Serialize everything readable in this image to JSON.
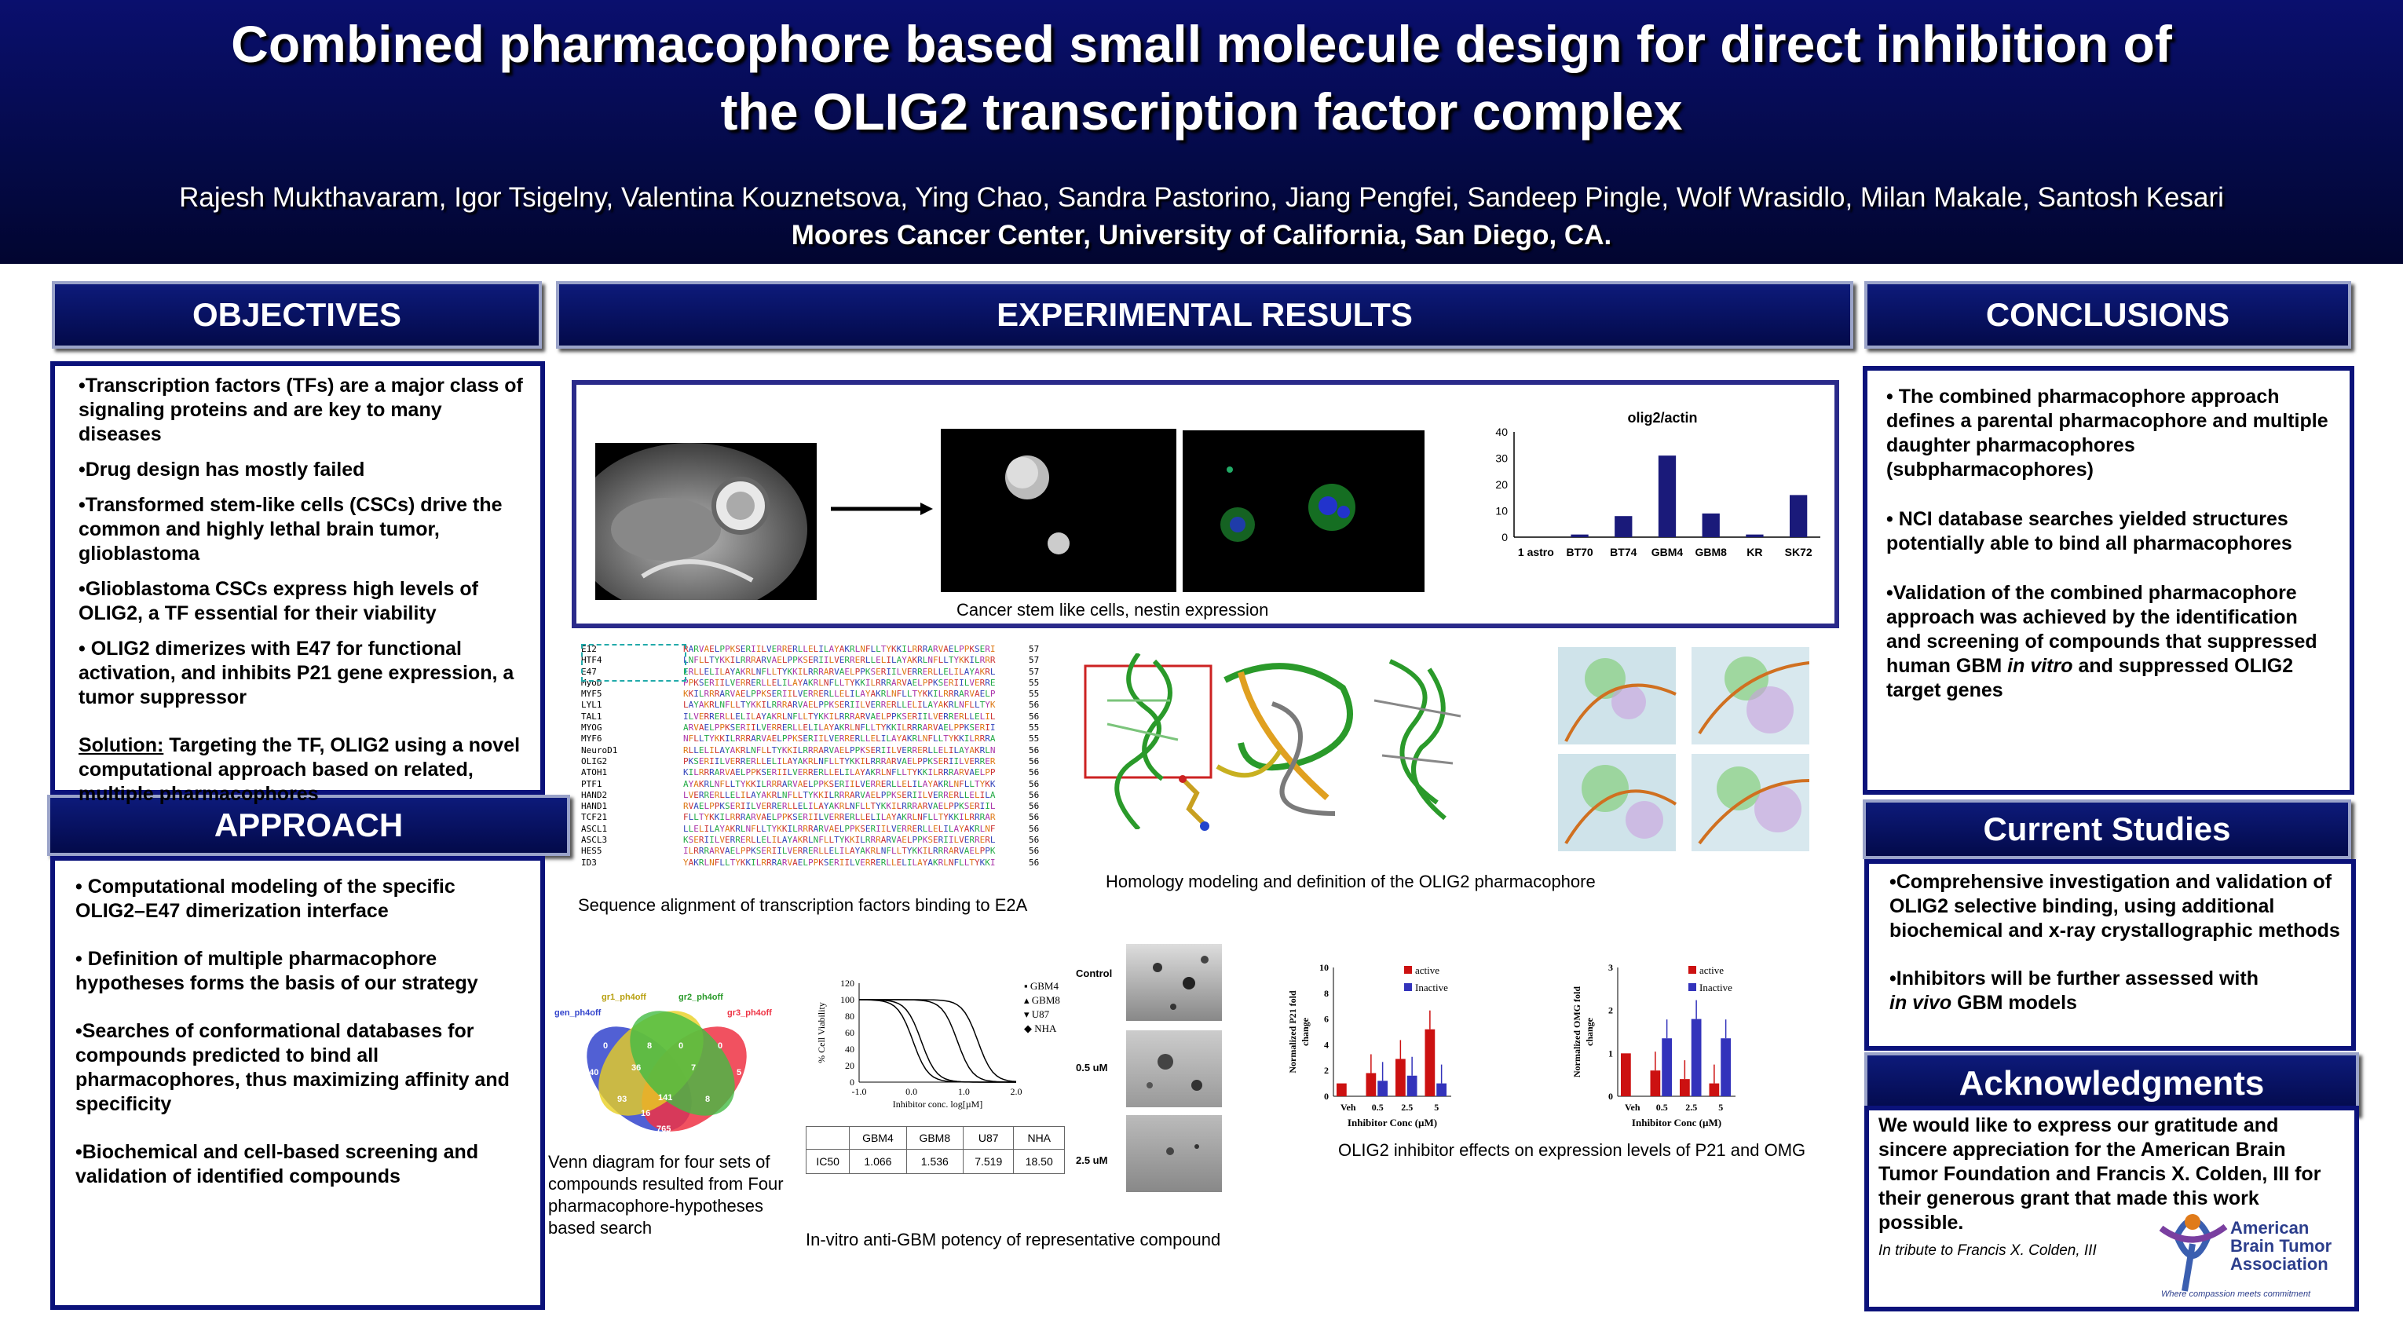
{
  "header": {
    "title_line1": "Combined pharmacophore based small molecule design for direct inhibition of",
    "title_line2": "the OLIG2 transcription factor complex",
    "authors": "Rajesh Mukthavaram, Igor Tsigelny, Valentina Kouznetsova, Ying  Chao, Sandra Pastorino,  Jiang Pengfei, Sandeep Pingle, Wolf Wrasidlo, Milan Makale, Santosh Kesari",
    "affiliation": "Moores Cancer Center, University of California, San Diego, CA."
  },
  "sections": {
    "objectives": "OBJECTIVES",
    "approach": "APPROACH",
    "results": "EXPERIMENTAL RESULTS",
    "conclusions": "CONCLUSIONS",
    "current": "Current Studies",
    "ack": "Acknowledgments"
  },
  "objectives": [
    "•Transcription factors (TFs) are a major class of signaling proteins and are key to many diseases",
    "•Drug design has mostly failed",
    "•Transformed stem-like cells (CSCs) drive the common and highly lethal brain tumor, glioblastoma",
    "•Glioblastoma CSCs express high levels of OLIG2, a TF essential for their viability",
    "• OLIG2 dimerizes with E47 for functional activation, and inhibits P21 gene expression, a tumor suppressor"
  ],
  "solution_label": "Solution:",
  "solution_text": " Targeting the TF, OLIG2 using a novel computational approach based on related, multiple pharmacophores",
  "approach": [
    "• Computational modeling of the specific OLIG2–E47 dimerization interface",
    "• Definition of multiple pharmacophore hypotheses forms the basis of our strategy",
    "•Searches of conformational databases for compounds predicted  to bind all pharmacophores, thus maximizing affinity and specificity",
    "•Biochemical and cell-based screening and validation of identified compounds"
  ],
  "conclusions": [
    "• The combined pharmacophore approach defines a parental pharmacophore and multiple daughter pharmacophores (subpharmacophores)",
    "• NCI database searches yielded structures potentially able to bind all pharmacophores",
    "•Validation of the combined pharmacophore approach was achieved by the identification and screening of compounds that suppressed human GBM "
  ],
  "conclusion_italic": "in vitro",
  "conclusion_tail": " and suppressed OLIG2 target genes",
  "current": [
    "•Comprehensive investigation and validation  of OLIG2 selective binding, using additional biochemical and x-ray crystallographic  methods",
    "•Inhibitors will be further assessed with "
  ],
  "current_italic": "in vivo",
  "current_tail": " GBM models",
  "ack_text": "We would like to express our gratitude and sincere appreciation for the American Brain Tumor Foundation and Francis X. Colden, III for their generous grant that made this work possible.",
  "tribute": "In tribute to Francis X. Colden, III",
  "logo": {
    "l1": "American",
    "l2": "Brain Tumor",
    "l3": "Association",
    "tag": "Where compassion meets commitment"
  },
  "captions": {
    "csc": "Cancer stem like cells, nestin expression",
    "seq": "Sequence alignment of transcription factors binding to E2A",
    "homology": "Homology modeling and definition of the OLIG2 pharmacophore",
    "venn": "Venn diagram for four sets of compounds resulted from Four pharmacophore-hypotheses based search",
    "potency": "In-vitro anti-GBM potency of representative compound",
    "effects": "OLIG2 inhibitor  effects on expression levels of  P21 and OMG"
  },
  "seq_names": [
    "E12",
    "HTF4",
    "E47",
    "MyoD",
    "MYF5",
    "LYL1",
    "TAL1",
    "MYOG",
    "MYF6",
    "NeuroD1",
    "OLIG2",
    "ATOH1",
    "PTF1",
    "HAND2",
    "HAND1",
    "TCF21",
    "ASCL1",
    "ASCL3",
    "HES5",
    "ID3"
  ],
  "seq_ends": [
    "57",
    "57",
    "57",
    "55",
    "55",
    "56",
    "56",
    "55",
    "55",
    "56",
    "56",
    "56",
    "56",
    "56",
    "56",
    "56",
    "56",
    "56",
    "56",
    "56"
  ],
  "venn": {
    "sets": [
      "gen_ph4off",
      "gr1_ph4off",
      "gr2_ph4off",
      "gr3_ph4off"
    ],
    "counts": [
      "0",
      "3",
      "0",
      "8",
      "0",
      "0",
      "640",
      "36",
      "7",
      "5",
      "93",
      "141",
      "8",
      "16",
      "765"
    ]
  },
  "colony": {
    "labels": [
      "Control",
      "0.5 uM",
      "2.5 uM"
    ]
  },
  "ic50_table": {
    "headers": [
      "",
      "GBM4",
      "GBM8",
      "U87",
      "NHA"
    ],
    "row_label": "IC50",
    "values": [
      "1.066",
      "1.536",
      "7.519",
      "18.50"
    ]
  },
  "chart_data": [
    {
      "type": "bar",
      "title": "olig2/actin",
      "categories": [
        "1 astro",
        "BT70",
        "BT74",
        "GBM4",
        "GBM8",
        "KR",
        "SK72"
      ],
      "values": [
        0,
        1,
        8,
        31,
        9,
        1,
        16
      ],
      "ylim": [
        0,
        40
      ],
      "yticks": [
        "0",
        "10",
        "20",
        "30",
        "40"
      ],
      "color": "#1a1a7a"
    },
    {
      "type": "line",
      "xlabel": "Inhibitor conc. log[µM]",
      "ylabel": "% Cell Viability",
      "xlim": [
        -1.0,
        2.0
      ],
      "ylim": [
        0,
        120
      ],
      "xticks": [
        "-1.0",
        "0.0",
        "1.0",
        "2.0"
      ],
      "yticks": [
        "0",
        "20",
        "40",
        "60",
        "80",
        "100",
        "120"
      ],
      "series": [
        {
          "name": "GBM4",
          "ic50": 1.066
        },
        {
          "name": "GBM8",
          "ic50": 1.536
        },
        {
          "name": "U87",
          "ic50": 7.519
        },
        {
          "name": "NHA",
          "ic50": 18.5
        }
      ]
    },
    {
      "type": "bar",
      "ylabel": "Normalized P21 fold change",
      "xlabel": "Inhibitor Conc (µM)",
      "categories": [
        "Veh",
        "0.5",
        "2.5",
        "5"
      ],
      "ylim": [
        0,
        10
      ],
      "yticks": [
        "0",
        "2",
        "4",
        "6",
        "8",
        "10"
      ],
      "series": [
        {
          "name": "active",
          "color": "#cc1111",
          "values": [
            1.0,
            1.8,
            2.9,
            5.2
          ]
        },
        {
          "name": "Inactive",
          "color": "#3333bb",
          "values": [
            0,
            1.2,
            1.6,
            1.0
          ]
        }
      ]
    },
    {
      "type": "bar",
      "ylabel": "Normalized OMG fold change",
      "xlabel": "Inhibitor Conc (µM)",
      "categories": [
        "Veh",
        "0.5",
        "2.5",
        "5"
      ],
      "ylim": [
        0,
        3
      ],
      "yticks": [
        "0",
        "1",
        "2",
        "3"
      ],
      "series": [
        {
          "name": "active",
          "color": "#cc1111",
          "values": [
            1.0,
            0.6,
            0.4,
            0.3
          ]
        },
        {
          "name": "Inactive",
          "color": "#3333bb",
          "values": [
            0,
            1.35,
            1.8,
            1.35
          ]
        }
      ]
    }
  ]
}
